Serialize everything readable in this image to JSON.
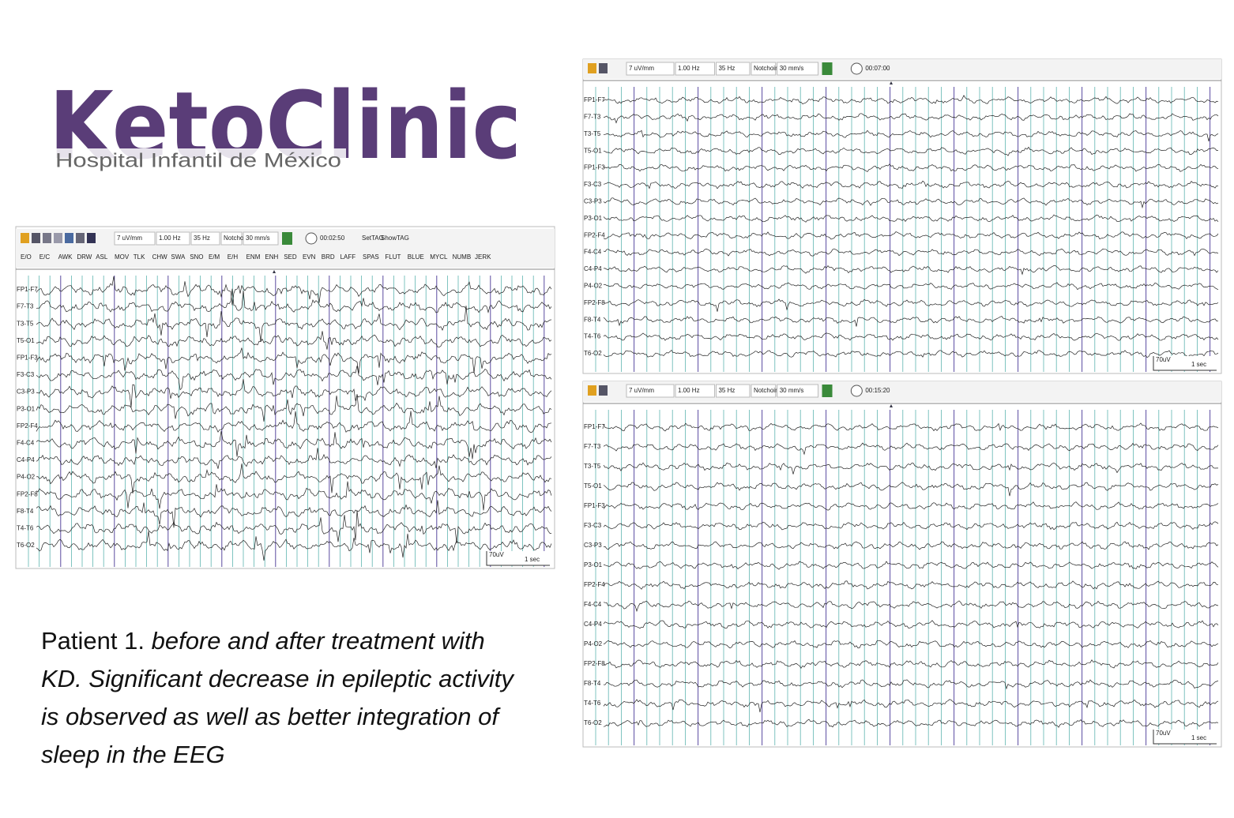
{
  "logo": {
    "brand": "KetoClinic",
    "subtitle": "Hospital Infantil de México"
  },
  "caption": {
    "lead": "Patient 1.",
    "text": "before and after treatment with KD. Significant decrease in epileptic activity is observed as well as better integration of sleep in the EEG"
  },
  "settings": {
    "sensitivity": "7 uV/mm",
    "low_filter": "1.00 Hz",
    "high_filter": "35 Hz",
    "notch": "Notchoin",
    "speed": "30 mm/s"
  },
  "channels": [
    "FP1-F7",
    "F7-T3",
    "T3-T5",
    "T5-O1",
    "FP1-F3",
    "F3-C3",
    "C3-P3",
    "P3-O1",
    "FP2-F4",
    "F4-C4",
    "C4-P4",
    "P4-O2",
    "FP2-F8",
    "F8-T4",
    "T4-T6",
    "T6-O2"
  ],
  "scale": {
    "amplitude": "70uV",
    "duration": "1 sec"
  },
  "panels": [
    {
      "time": "00:02:50",
      "tags": [
        "SetTAG",
        "ShowTAG"
      ],
      "event_buttons": [
        "E/O",
        "E/C",
        "AWK",
        "DRW",
        "ASL",
        "MOV",
        "TLK",
        "CHW",
        "SWA",
        "SNO",
        "E/M",
        "E/H",
        "ENM",
        "ENH",
        "SED",
        "EVN",
        "BRD",
        "LAFF",
        "SPAS",
        "FLUT",
        "BLUE",
        "MYCL",
        "NUMB",
        "JERK"
      ]
    },
    {
      "time": "00:07:00"
    },
    {
      "time": "00:15:20"
    }
  ]
}
